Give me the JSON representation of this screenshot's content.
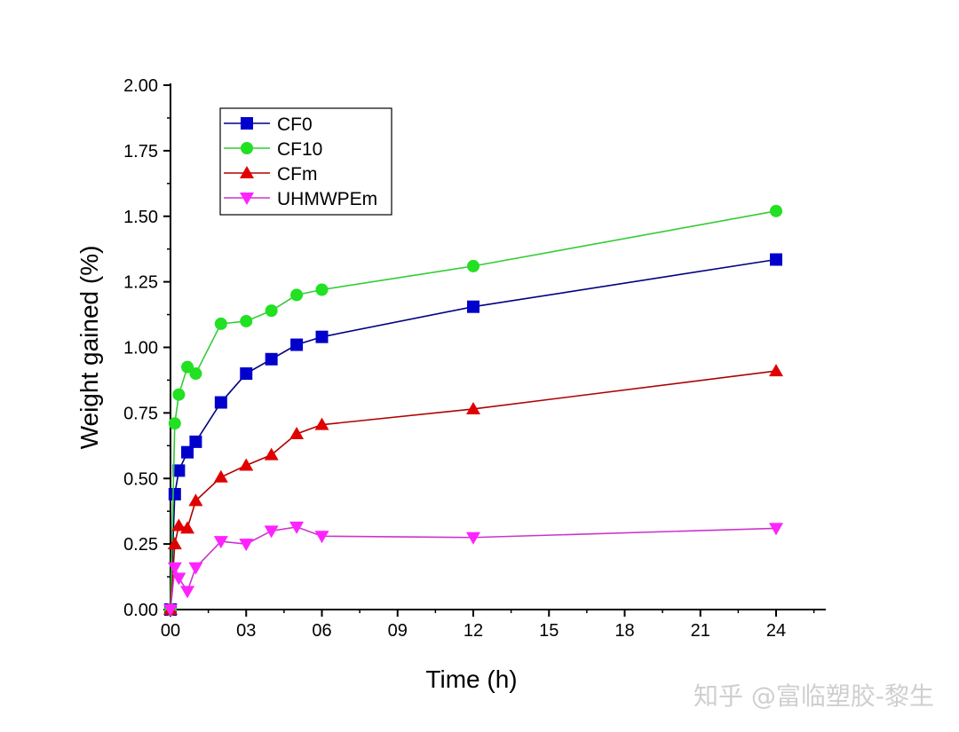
{
  "chart_data": {
    "type": "line",
    "title": "",
    "xlabel": "Time (h)",
    "ylabel": "Weight gained (%)",
    "xlim": [
      0,
      26
    ],
    "ylim": [
      0,
      2.0
    ],
    "xticks": [
      0,
      3,
      6,
      9,
      12,
      15,
      18,
      21,
      24
    ],
    "xtick_labels": [
      "00",
      "03",
      "06",
      "09",
      "12",
      "15",
      "18",
      "21",
      "24"
    ],
    "yticks": [
      0,
      0.25,
      0.5,
      0.75,
      1.0,
      1.25,
      1.5,
      1.75,
      2.0
    ],
    "ytick_labels": [
      "0.00",
      "0.25",
      "0.50",
      "0.75",
      "1.00",
      "1.25",
      "1.50",
      "1.75",
      "2.00"
    ],
    "grid": false,
    "legend_position": "top-left",
    "x": [
      0,
      0.17,
      0.33,
      0.67,
      1,
      2,
      3,
      4,
      5,
      6,
      12,
      24
    ],
    "series": [
      {
        "name": "CF0",
        "color": "#0000cc",
        "line": "#000080",
        "marker": "square",
        "values": [
          0,
          0.44,
          0.53,
          0.6,
          0.64,
          0.79,
          0.9,
          0.955,
          1.01,
          1.04,
          1.155,
          1.335
        ]
      },
      {
        "name": "CF10",
        "color": "#22e022",
        "line": "#33cc33",
        "marker": "circle",
        "values": [
          0,
          0.71,
          0.82,
          0.925,
          0.9,
          1.09,
          1.1,
          1.14,
          1.2,
          1.22,
          1.31,
          1.52
        ]
      },
      {
        "name": "CFm",
        "color": "#e00000",
        "line": "#b00000",
        "marker": "triangle-up",
        "values": [
          0,
          0.25,
          0.32,
          0.31,
          0.415,
          0.505,
          0.55,
          0.59,
          0.67,
          0.705,
          0.765,
          0.91
        ]
      },
      {
        "name": "UHMWPEm",
        "color": "#ff22ff",
        "line": "#cc33cc",
        "marker": "triangle-down",
        "values": [
          0,
          0.16,
          0.12,
          0.07,
          0.16,
          0.26,
          0.25,
          0.3,
          0.315,
          0.28,
          0.275,
          0.31
        ]
      }
    ]
  },
  "watermark": "知乎 @富临塑胶-黎生"
}
